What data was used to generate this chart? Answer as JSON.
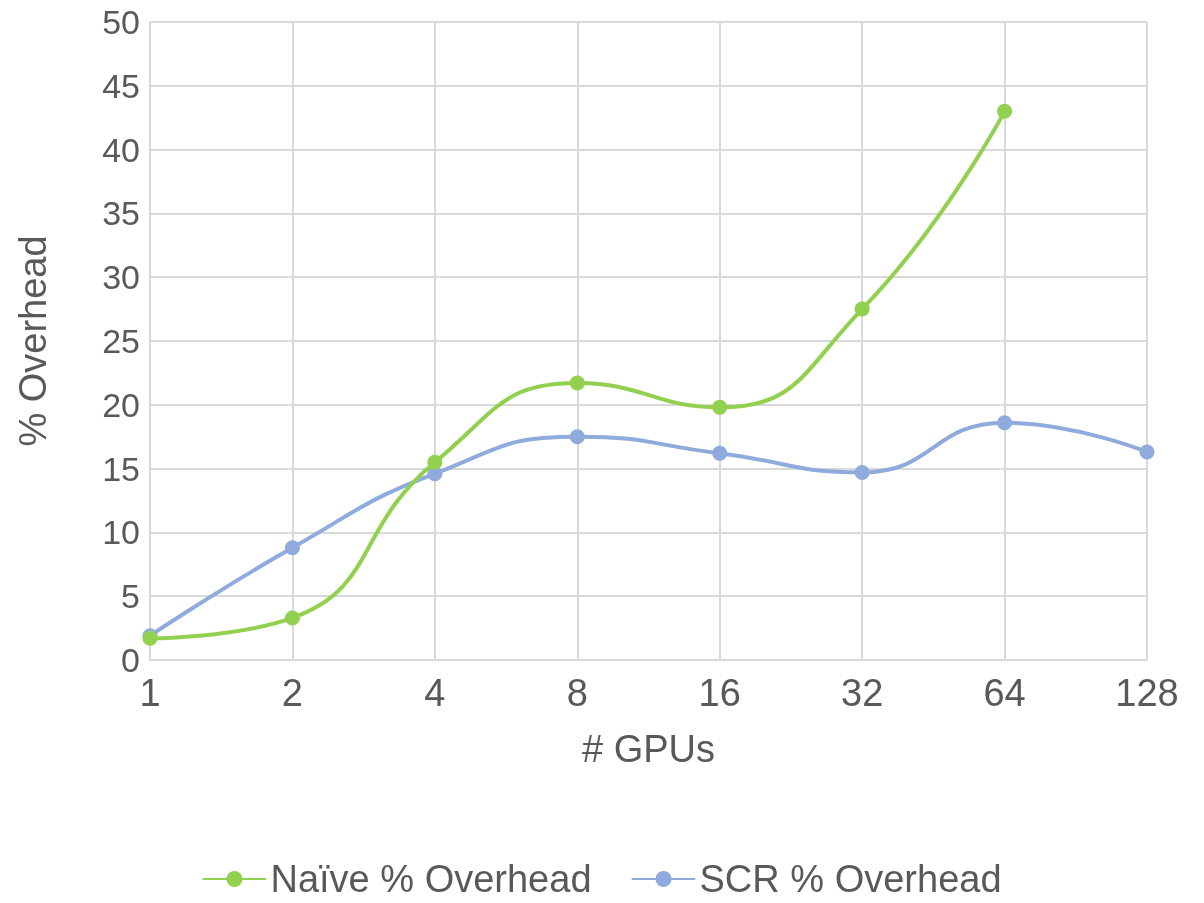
{
  "chart_data": {
    "type": "line",
    "xlabel": "# GPUs",
    "ylabel": "% Overhead",
    "categories": [
      "1",
      "2",
      "4",
      "8",
      "16",
      "32",
      "64",
      "128"
    ],
    "series": [
      {
        "name": "Naïve % Overhead",
        "color": "#92d050",
        "values": [
          1.7,
          3.3,
          15.5,
          21.7,
          19.8,
          27.5,
          43,
          null
        ]
      },
      {
        "name": "SCR % Overhead",
        "color": "#8faadc",
        "values": [
          1.9,
          8.8,
          14.6,
          17.5,
          16.2,
          14.7,
          18.6,
          16.3
        ]
      }
    ],
    "ylim": [
      0,
      50
    ],
    "yticks": [
      0,
      5,
      10,
      15,
      20,
      25,
      30,
      35,
      40,
      45,
      50
    ],
    "grid": true,
    "legend": "bottom",
    "marker": "circle",
    "line_style": "solid"
  }
}
